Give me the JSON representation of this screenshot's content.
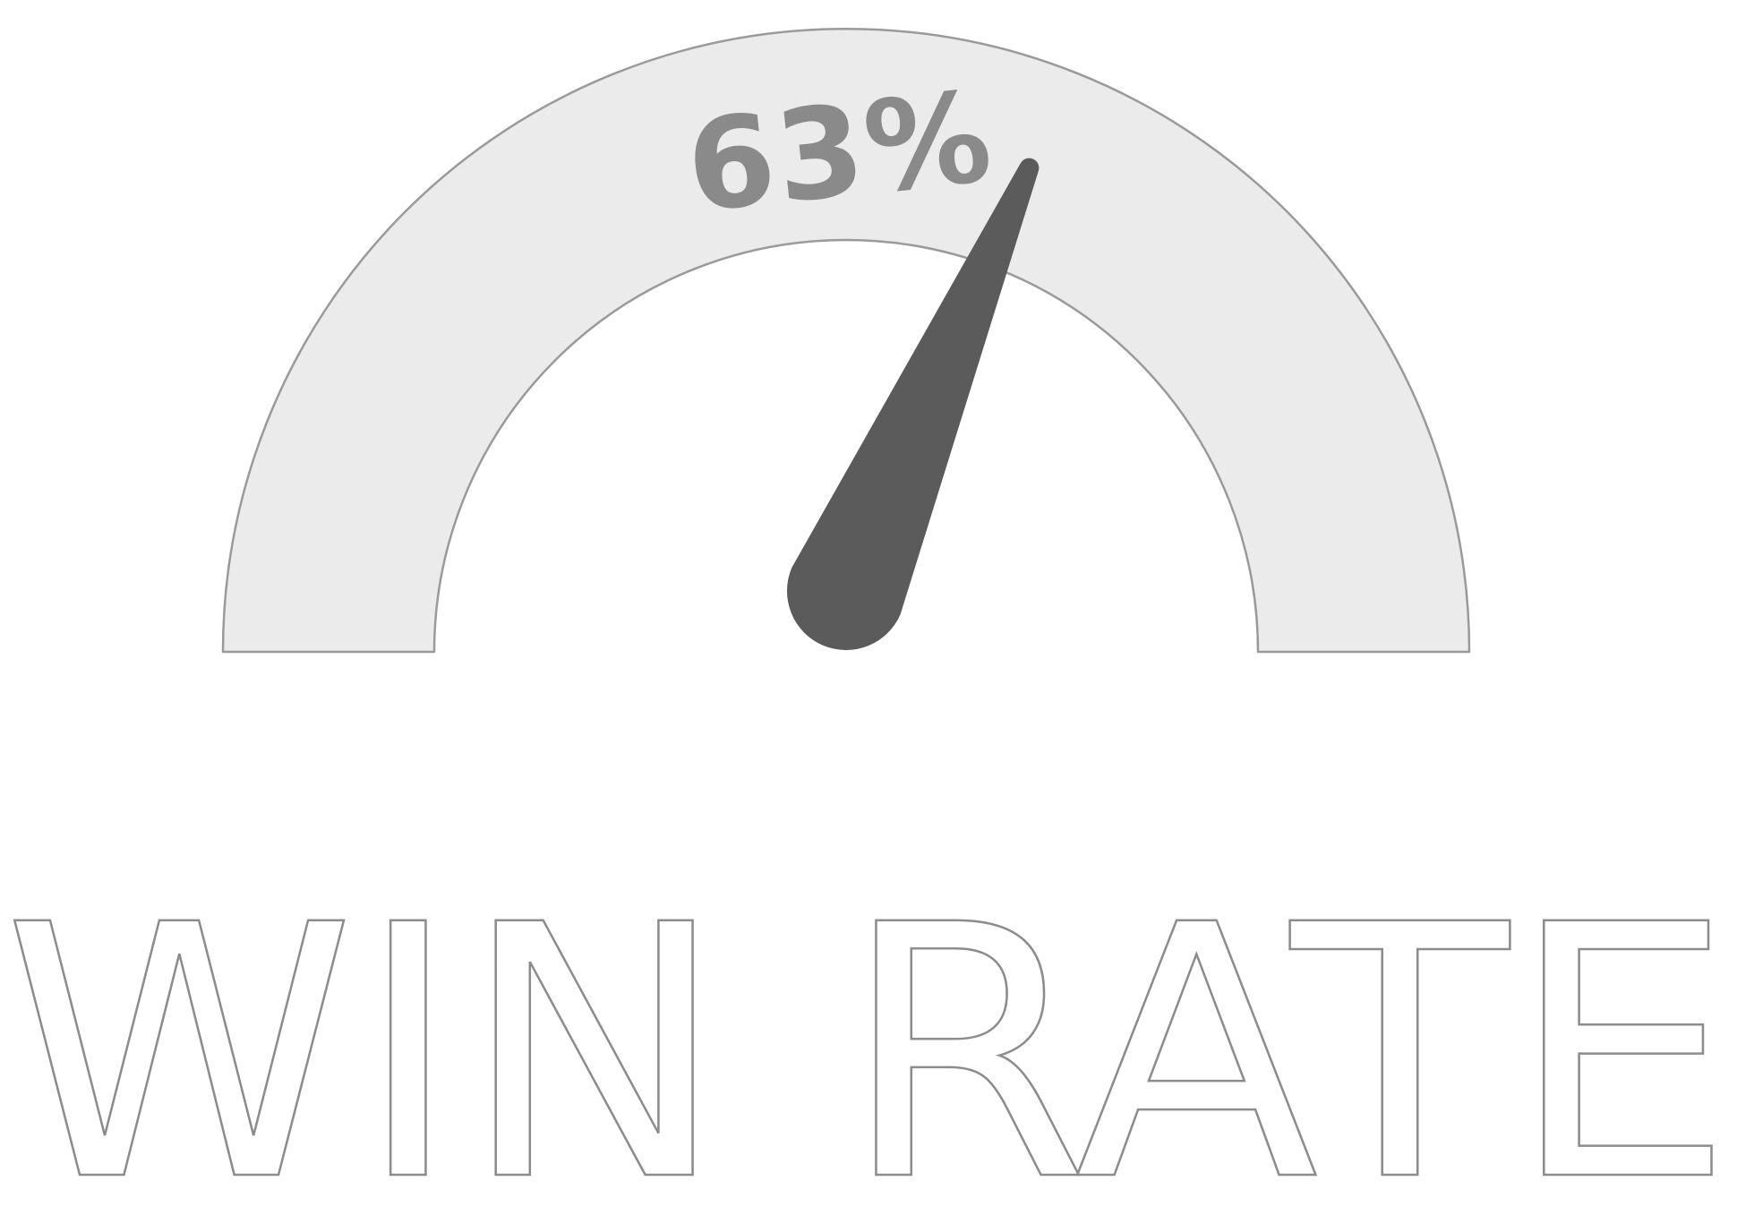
{
  "gauge": {
    "value_label": "63%",
    "value": 63,
    "min": 0,
    "max": 100,
    "track_color": "#ebebeb",
    "track_outline_color": "#9a9a9a",
    "needle_color": "#5b5b5b",
    "value_text_color": "#8a8a8a"
  },
  "caption": {
    "text": "WIN RATE",
    "style": "outlined"
  }
}
